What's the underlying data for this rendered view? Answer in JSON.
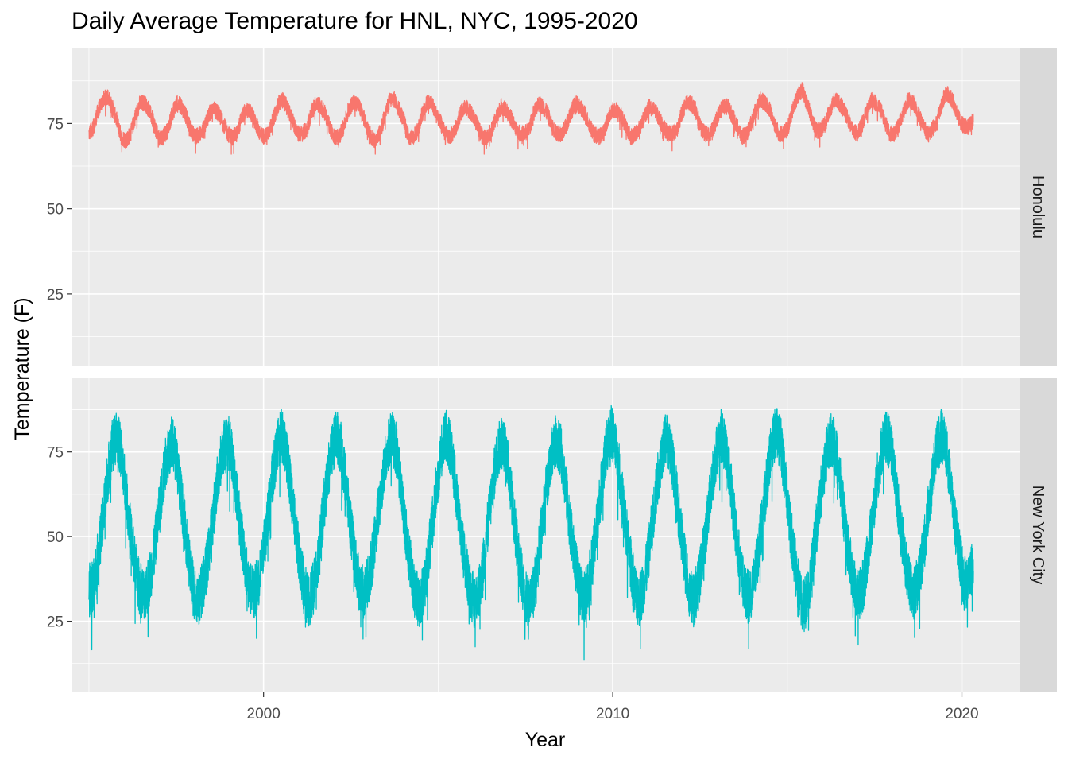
{
  "chart_data": {
    "type": "line",
    "title": "Daily Average Temperature for HNL, NYC, 1995-2020",
    "xlabel": "Year",
    "ylabel": "Temperature (F)",
    "xlim": [
      1994.5,
      2021.65
    ],
    "ylim": [
      4,
      97
    ],
    "x_ticks": [
      2000,
      2010,
      2020
    ],
    "y_ticks": [
      25,
      50,
      75
    ],
    "grid": true,
    "facet": "rows",
    "series": [
      {
        "name": "Honolulu",
        "color": "#F8766D",
        "x_range": [
          1995.0,
          2020.33
        ],
        "values": [
          72,
          74,
          79,
          82,
          83,
          80,
          76,
          71,
          70,
          72,
          77,
          81,
          81,
          79,
          75,
          71,
          71,
          73,
          78,
          81,
          80,
          77,
          73,
          71,
          72,
          74,
          78,
          79,
          78,
          75,
          72,
          71,
          72,
          77,
          79,
          78,
          75,
          72,
          71,
          73,
          77,
          81,
          82,
          79,
          76,
          72,
          72,
          73,
          78,
          81,
          80,
          78,
          74,
          71,
          71,
          74,
          79,
          81,
          81,
          78,
          74,
          71,
          70,
          73,
          78,
          82,
          82,
          79,
          76,
          71,
          71,
          73,
          78,
          81,
          81,
          78,
          75,
          72,
          71,
          73,
          77,
          80,
          79,
          77,
          74,
          71,
          71,
          73,
          77,
          80,
          79,
          77,
          74,
          72,
          72,
          73,
          78,
          81,
          80,
          78,
          74,
          72,
          72,
          74,
          78,
          81,
          80,
          78,
          75,
          72,
          71,
          72,
          76,
          79,
          79,
          77,
          74,
          71,
          72,
          74,
          77,
          80,
          79,
          77,
          74,
          72,
          72,
          73,
          78,
          81,
          81,
          79,
          74,
          72,
          72,
          74,
          78,
          80,
          80,
          77,
          74,
          71,
          72,
          75,
          79,
          82,
          81,
          79,
          75,
          72,
          72,
          74,
          79,
          83,
          85,
          81,
          77,
          73,
          73,
          75,
          79,
          82,
          81,
          79,
          76,
          73,
          72,
          75,
          79,
          82,
          81,
          79,
          75,
          72,
          72,
          75,
          79,
          82,
          81,
          78,
          75,
          72,
          73,
          75,
          80,
          84,
          83,
          80,
          76,
          74,
          74,
          76
        ],
        "range_y": [
          66,
          87
        ]
      },
      {
        "name": "New York City",
        "color": "#00BFC4",
        "x_range": [
          1995.0,
          2020.33
        ],
        "values": [
          34,
          36,
          44,
          55,
          67,
          76,
          80,
          75,
          64,
          52,
          42,
          35,
          33,
          36,
          43,
          54,
          65,
          74,
          78,
          74,
          63,
          52,
          41,
          33,
          32,
          36,
          44,
          55,
          66,
          75,
          79,
          76,
          65,
          53,
          43,
          35,
          33,
          37,
          45,
          56,
          67,
          76,
          80,
          75,
          65,
          53,
          43,
          34,
          31,
          35,
          44,
          56,
          67,
          76,
          80,
          76,
          66,
          54,
          44,
          35,
          33,
          37,
          45,
          56,
          66,
          76,
          80,
          76,
          65,
          53,
          43,
          34,
          30,
          34,
          43,
          55,
          66,
          76,
          80,
          75,
          65,
          53,
          43,
          35,
          31,
          33,
          41,
          53,
          64,
          74,
          78,
          75,
          65,
          52,
          42,
          33,
          30,
          34,
          43,
          55,
          66,
          75,
          79,
          75,
          65,
          53,
          43,
          35,
          32,
          36,
          44,
          56,
          67,
          77,
          81,
          77,
          66,
          54,
          44,
          35,
          31,
          35,
          44,
          55,
          66,
          75,
          79,
          75,
          65,
          53,
          43,
          34,
          31,
          36,
          45,
          56,
          67,
          76,
          80,
          76,
          66,
          53,
          43,
          34,
          32,
          36,
          45,
          56,
          67,
          77,
          81,
          77,
          66,
          53,
          43,
          33,
          29,
          34,
          44,
          55,
          66,
          75,
          79,
          75,
          65,
          53,
          43,
          35,
          32,
          36,
          45,
          56,
          67,
          76,
          80,
          76,
          66,
          54,
          44,
          36,
          33,
          37,
          45,
          56,
          67,
          76,
          80,
          76,
          66,
          54,
          44,
          36,
          38,
          42
        ],
        "range_y": [
          8,
          93
        ]
      }
    ]
  }
}
